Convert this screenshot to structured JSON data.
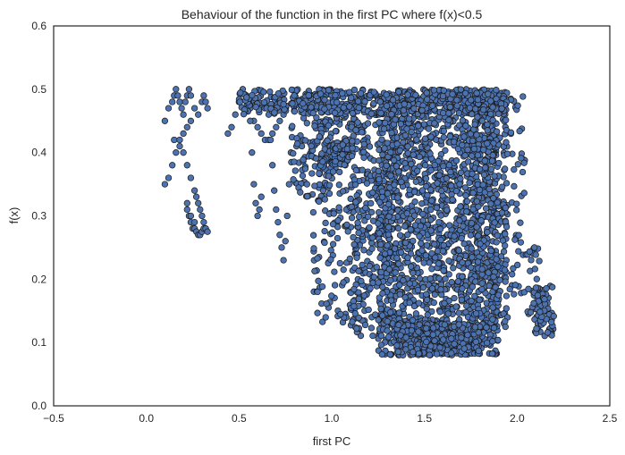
{
  "chart_data": {
    "type": "scatter",
    "title": "Behaviour of the function in the first PC where f(x)<0.5",
    "xlabel": "first PC",
    "ylabel": "f(x)",
    "xlim": [
      -0.5,
      2.5
    ],
    "ylim": [
      0.0,
      0.6
    ],
    "xticks": [
      -0.5,
      0.0,
      0.5,
      1.0,
      1.5,
      2.0,
      2.5
    ],
    "xtick_labels": [
      "−0.5",
      "0.0",
      "0.5",
      "1.0",
      "1.5",
      "2.0",
      "2.5"
    ],
    "yticks": [
      0.0,
      0.1,
      0.2,
      0.3,
      0.4,
      0.5,
      0.6
    ],
    "ytick_labels": [
      "0.0",
      "0.1",
      "0.2",
      "0.3",
      "0.4",
      "0.5",
      "0.6"
    ],
    "grid": false,
    "legend": "none",
    "marker_color": "#4c72b0",
    "marker_edge_color": "#1a1a1a",
    "series": [
      {
        "x": [
          0.1,
          0.12,
          0.14,
          0.15,
          0.16,
          0.17,
          0.18,
          0.19,
          0.2,
          0.21,
          0.22,
          0.23,
          0.24,
          0.26,
          0.28,
          0.3,
          0.31,
          0.32,
          0.33,
          0.15,
          0.18,
          0.2,
          0.22,
          0.24,
          0.26,
          0.27,
          0.28,
          0.29,
          0.3,
          0.31,
          0.32,
          0.22,
          0.23,
          0.24,
          0.25,
          0.26,
          0.27,
          0.28,
          0.29,
          0.3,
          0.31,
          0.32,
          0.33,
          0.22,
          0.24,
          0.26,
          0.1,
          0.12,
          0.14,
          0.16,
          0.18,
          0.2,
          0.22,
          0.24,
          0.44,
          0.46,
          0.48,
          0.5,
          0.52,
          0.54,
          0.56,
          0.58,
          0.6,
          0.62,
          0.64,
          0.66,
          0.68,
          0.7,
          0.72,
          0.74,
          0.56,
          0.57,
          0.58,
          0.59,
          0.6,
          0.61,
          0.62,
          0.66,
          0.67,
          0.68,
          0.69,
          0.7,
          0.71,
          0.72,
          0.73,
          0.74,
          0.75,
          0.76,
          0.77,
          0.78
        ],
        "y": [
          0.45,
          0.47,
          0.48,
          0.49,
          0.5,
          0.49,
          0.48,
          0.47,
          0.46,
          0.48,
          0.49,
          0.5,
          0.49,
          0.47,
          0.46,
          0.48,
          0.49,
          0.48,
          0.47,
          0.42,
          0.41,
          0.4,
          0.38,
          0.36,
          0.34,
          0.33,
          0.32,
          0.31,
          0.3,
          0.29,
          0.28,
          0.31,
          0.3,
          0.29,
          0.28,
          0.28,
          0.275,
          0.27,
          0.27,
          0.275,
          0.28,
          0.28,
          0.275,
          0.32,
          0.3,
          0.29,
          0.35,
          0.36,
          0.38,
          0.4,
          0.42,
          0.43,
          0.44,
          0.45,
          0.43,
          0.44,
          0.46,
          0.48,
          0.5,
          0.49,
          0.47,
          0.45,
          0.44,
          0.43,
          0.42,
          0.42,
          0.43,
          0.44,
          0.45,
          0.46,
          0.45,
          0.4,
          0.35,
          0.32,
          0.3,
          0.31,
          0.33,
          0.46,
          0.42,
          0.38,
          0.34,
          0.31,
          0.29,
          0.27,
          0.25,
          0.23,
          0.26,
          0.3,
          0.35,
          0.4
        ]
      }
    ],
    "point_clouds": [
      {
        "x_range": [
          0.78,
          1.05
        ],
        "y_range": [
          0.33,
          0.5
        ],
        "count": 160
      },
      {
        "x_range": [
          0.9,
          1.2
        ],
        "y_range": [
          0.13,
          0.5
        ],
        "count": 220
      },
      {
        "x_range": [
          1.0,
          1.1
        ],
        "y_range": [
          0.38,
          0.42
        ],
        "count": 50
      },
      {
        "x_range": [
          1.1,
          1.35
        ],
        "y_range": [
          0.11,
          0.5
        ],
        "count": 260
      },
      {
        "x_range": [
          1.25,
          1.9
        ],
        "y_range": [
          0.08,
          0.5
        ],
        "count": 1600
      },
      {
        "x_range": [
          1.35,
          1.8
        ],
        "y_range": [
          0.08,
          0.13
        ],
        "count": 500
      },
      {
        "x_range": [
          1.75,
          1.95
        ],
        "y_range": [
          0.12,
          0.5
        ],
        "count": 280
      },
      {
        "x_range": [
          1.92,
          2.05
        ],
        "y_range": [
          0.17,
          0.49
        ],
        "count": 60
      },
      {
        "x_range": [
          2.08,
          2.2
        ],
        "y_range": [
          0.11,
          0.19
        ],
        "count": 70
      },
      {
        "x_range": [
          2.05,
          2.12
        ],
        "y_range": [
          0.11,
          0.27
        ],
        "count": 20
      },
      {
        "x_range": [
          0.5,
          1.95
        ],
        "y_range": [
          0.46,
          0.5
        ],
        "count": 420
      }
    ]
  }
}
